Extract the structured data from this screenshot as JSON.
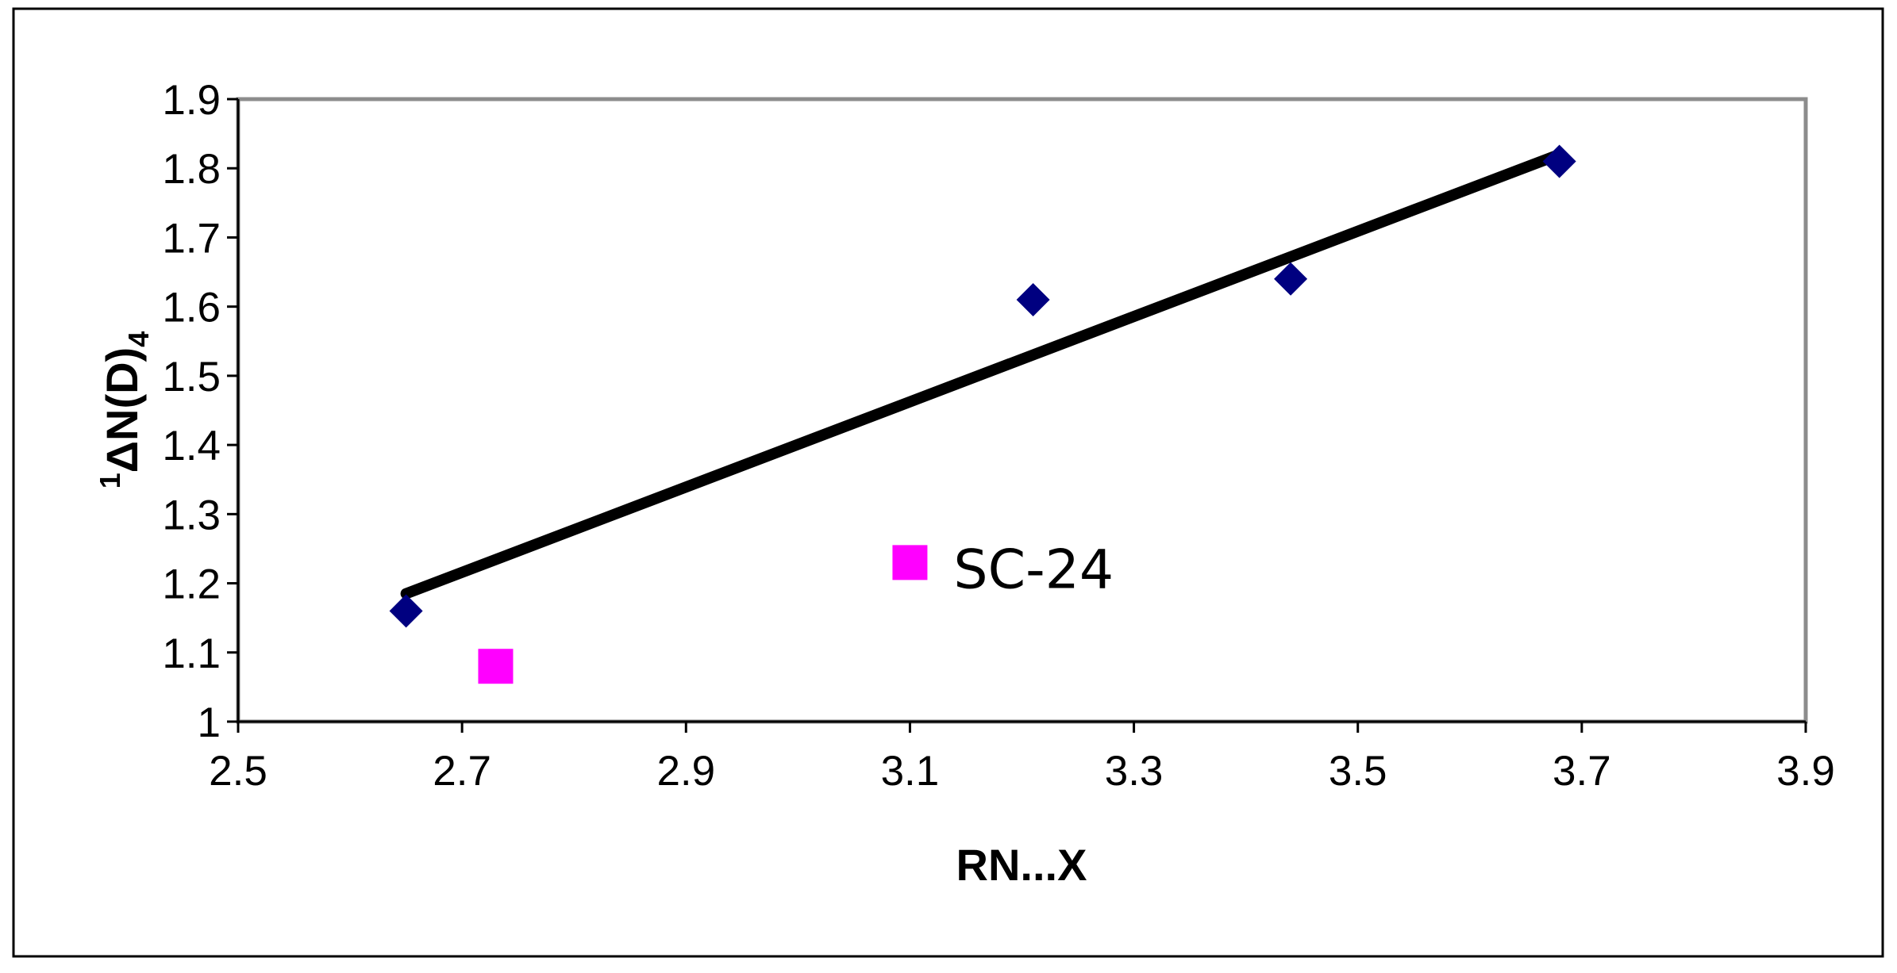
{
  "chart_data": {
    "type": "scatter",
    "xlabel": "RN...X",
    "ylabel_sup": "1",
    "ylabel_main": "ΔN(D)",
    "ylabel_sub": "4",
    "xlim": [
      2.5,
      3.9
    ],
    "ylim": [
      1,
      1.9
    ],
    "xticks": [
      2.5,
      2.7,
      2.9,
      3.1,
      3.3,
      3.5,
      3.7,
      3.9
    ],
    "yticks": [
      1,
      1.1,
      1.2,
      1.3,
      1.4,
      1.5,
      1.6,
      1.7,
      1.8,
      1.9
    ],
    "xtick_labels": [
      "2.5",
      "2.7",
      "2.9",
      "3.1",
      "3.3",
      "3.5",
      "3.7",
      "3.9"
    ],
    "ytick_labels": [
      "1",
      "1.1",
      "1.2",
      "1.3",
      "1.4",
      "1.5",
      "1.6",
      "1.7",
      "1.8",
      "1.9"
    ],
    "grid": false,
    "series": [
      {
        "marker": "diamond",
        "color": "#000080",
        "points": [
          {
            "x": 2.65,
            "y": 1.16
          },
          {
            "x": 3.21,
            "y": 1.61
          },
          {
            "x": 3.44,
            "y": 1.64
          },
          {
            "x": 3.68,
            "y": 1.81
          }
        ]
      },
      {
        "marker": "square",
        "color": "#ff00ff",
        "points": [
          {
            "x": 2.73,
            "y": 1.08
          },
          {
            "x": 3.1,
            "y": 1.23
          }
        ]
      }
    ],
    "trendline": {
      "color": "#000000",
      "from": {
        "x": 2.65,
        "y": 1.185
      },
      "to": {
        "x": 3.68,
        "y": 1.82
      }
    },
    "annotations": [
      {
        "text": "SC-24",
        "x": 3.1,
        "y": 1.23
      }
    ]
  }
}
